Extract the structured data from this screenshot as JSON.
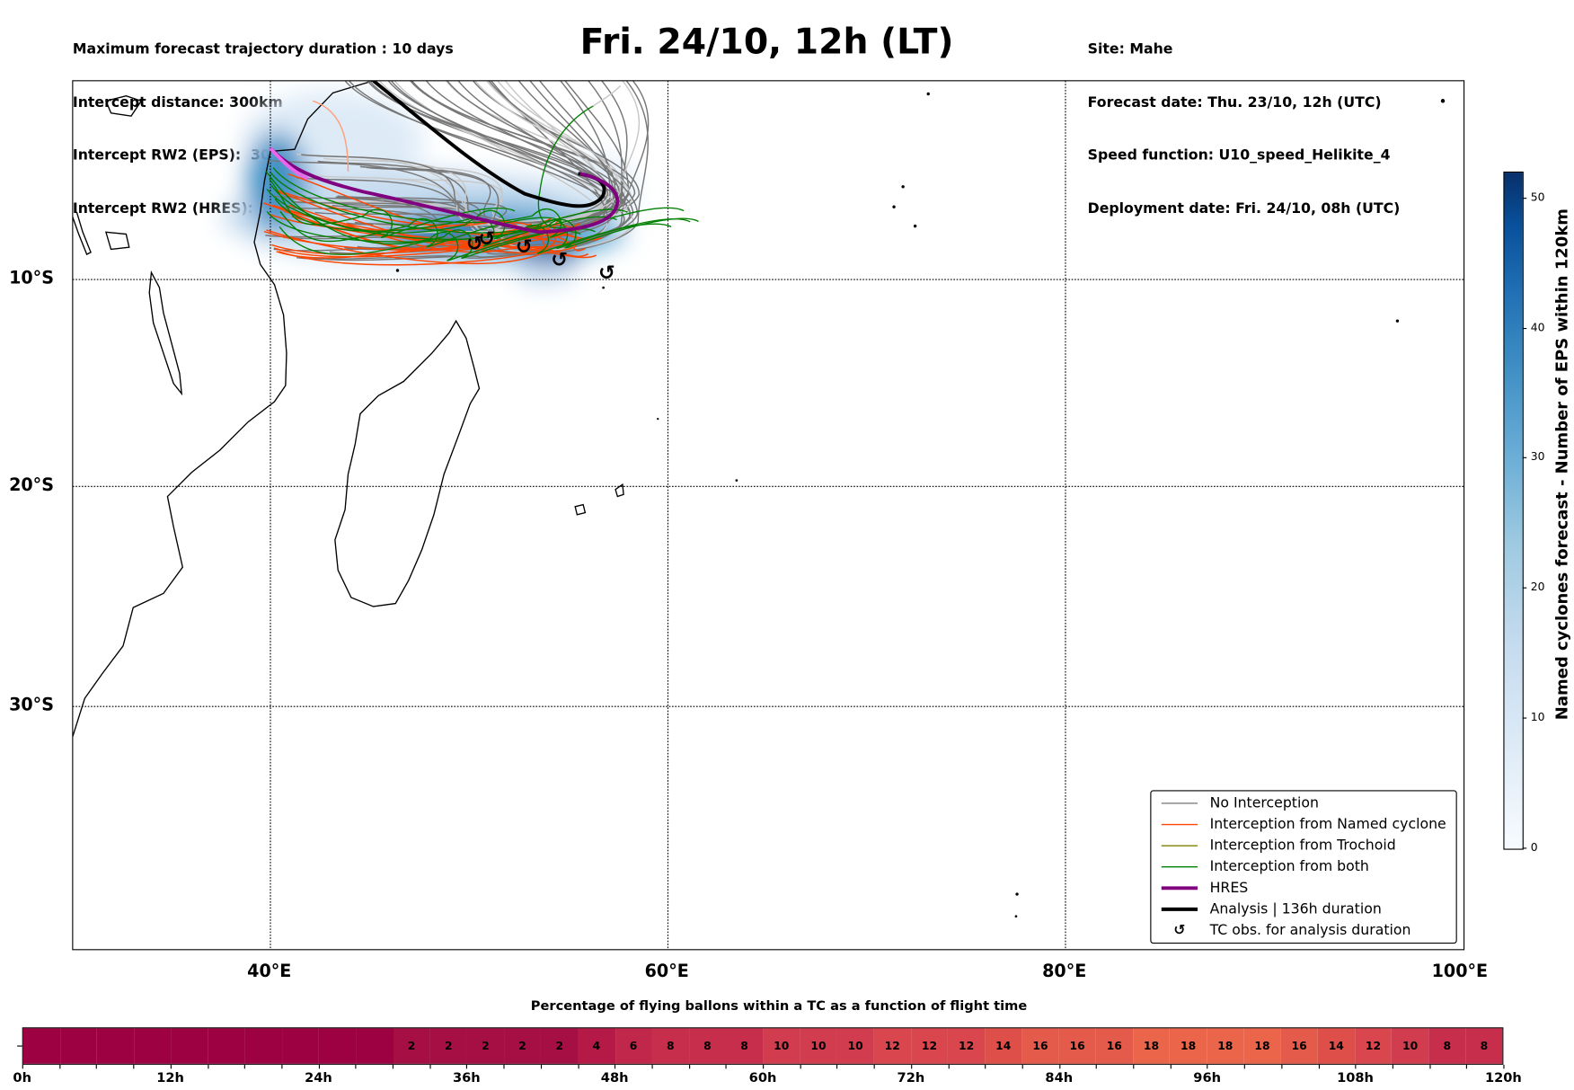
{
  "header": {
    "left": [
      "Maximum forecast trajectory duration : 10 days",
      "Intercept distance: 300km",
      "Intercept RW2 (EPS):  30km/h2",
      "Intercept RW2 (HRES): 30km/h2"
    ],
    "title": "Fri. 24/10, 12h (LT)",
    "right": [
      "Site: Mahe",
      "Forecast date: Thu. 23/10, 12h (UTC)",
      "Speed function: U10_speed_Helikite_4",
      "Deployment date: Fri. 24/10, 08h (UTC)"
    ]
  },
  "map": {
    "lon_labels": [
      "40°E",
      "60°E",
      "80°E",
      "100°E"
    ],
    "lat_labels": [
      "10°S",
      "20°S",
      "30°S"
    ]
  },
  "legend": [
    {
      "label": "No Interception",
      "color": "#808080",
      "kind": "line"
    },
    {
      "label": "Interception from Named cyclone",
      "color": "#ff4500",
      "kind": "line"
    },
    {
      "label": "Interception from Trochoid",
      "color": "#808000",
      "kind": "line"
    },
    {
      "label": "Interception from both",
      "color": "#008000",
      "kind": "line"
    },
    {
      "label": "HRES",
      "color": "#800080",
      "kind": "thick"
    },
    {
      "label": "Analysis | 136h duration",
      "color": "#000000",
      "kind": "thick"
    },
    {
      "label": "TC obs. for analysis duration",
      "color": "#000000",
      "kind": "symbol",
      "symbol": "↺"
    }
  ],
  "colorbar": {
    "label": "Named cyclones forecast - Number of EPS within 120km",
    "ticks": [
      "0",
      "10",
      "20",
      "30",
      "40",
      "50"
    ],
    "tick_values": [
      0,
      10,
      20,
      30,
      40,
      50
    ],
    "max": 52
  },
  "chart_data": {
    "type": "heatmap",
    "title": "Percentage of flying ballons within a TC as a function of flight time",
    "bin_hours": 3,
    "x_ticks": [
      "0h",
      "12h",
      "24h",
      "36h",
      "48h",
      "60h",
      "72h",
      "84h",
      "96h",
      "108h",
      "120h"
    ],
    "xlim": [
      0,
      120
    ],
    "values": [
      0,
      0,
      0,
      0,
      0,
      0,
      0,
      0,
      0,
      0,
      2,
      2,
      2,
      2,
      2,
      4,
      6,
      8,
      8,
      8,
      10,
      10,
      10,
      12,
      12,
      12,
      14,
      16,
      16,
      16,
      18,
      18,
      18,
      18,
      16,
      14,
      12,
      10,
      8,
      8
    ]
  }
}
